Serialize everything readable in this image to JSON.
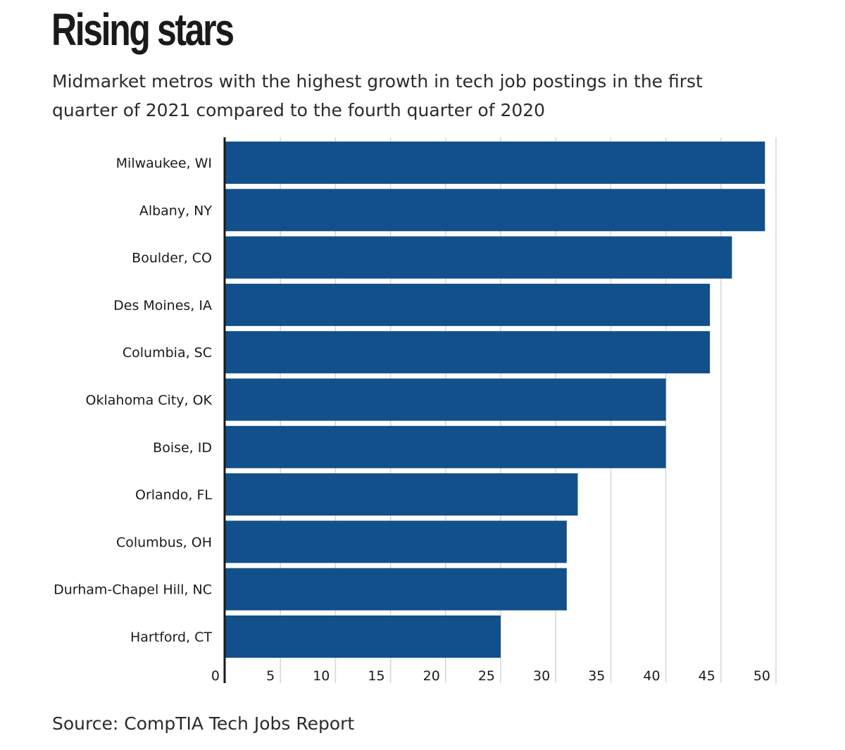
{
  "header": {
    "title": "Rising stars",
    "subtitle": "Midmarket metros with the highest growth in tech job postings in the first quarter of 2021 compared to the fourth quarter of 2020"
  },
  "footer": {
    "source": "Source: CompTIA Tech Jobs Report"
  },
  "colors": {
    "bar": "#11508b",
    "grid": "#d6d6d6",
    "axis": "#1a1a1a"
  },
  "chart_data": {
    "type": "bar",
    "orientation": "horizontal",
    "categories": [
      "Milwaukee, WI",
      "Albany, NY",
      "Boulder, CO",
      "Des Moines, IA",
      "Columbia, SC",
      "Oklahoma City, OK",
      "Boise, ID",
      "Orlando, FL",
      "Columbus, OH",
      "Durham-Chapel Hill, NC",
      "Hartford, CT"
    ],
    "values": [
      49,
      49,
      46,
      44,
      44,
      40,
      40,
      32,
      31,
      31,
      25
    ],
    "xlim": [
      0,
      50
    ],
    "xticks": [
      0,
      5,
      10,
      15,
      20,
      25,
      30,
      35,
      40,
      45,
      50
    ],
    "grid": true,
    "legend": "none",
    "title": "Rising stars",
    "xlabel": "",
    "ylabel": ""
  }
}
